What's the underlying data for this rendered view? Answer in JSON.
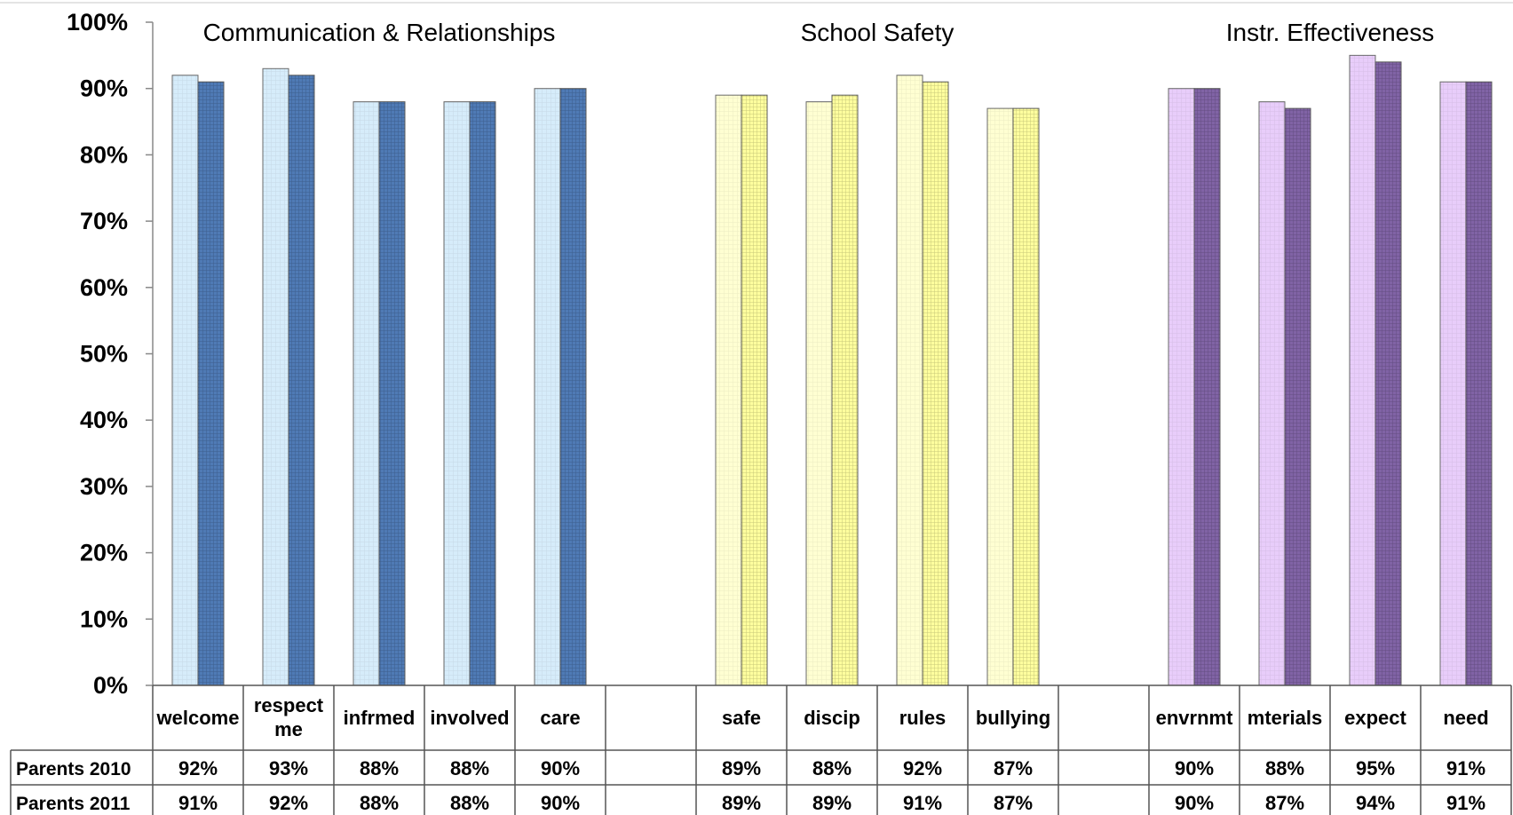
{
  "chart_data": {
    "type": "bar",
    "ylim": [
      0,
      100
    ],
    "yticks": [
      "0%",
      "10%",
      "20%",
      "30%",
      "40%",
      "50%",
      "60%",
      "70%",
      "80%",
      "90%",
      "100%"
    ],
    "groups": [
      {
        "title": "Communication & Relationships",
        "categories": [
          "welcome",
          "respect me",
          "infrmed",
          "involved",
          "care"
        ],
        "colors": {
          "s2010": "#d6ecfa",
          "s2011": "#4f7ab5"
        }
      },
      {
        "title": "School Safety",
        "categories": [
          "safe",
          "discip",
          "rules",
          "bullying"
        ],
        "colors": {
          "s2010": "#ffffd2",
          "s2011": "#ffff9e"
        }
      },
      {
        "title": "Instr. Effectiveness",
        "categories": [
          "envrnmt",
          "mterials",
          "expect",
          "need"
        ],
        "colors": {
          "s2010": "#e8cdfa",
          "s2011": "#8063a5"
        }
      }
    ],
    "slots": [
      "welcome",
      "respect me",
      "infrmed",
      "involved",
      "care",
      "",
      "safe",
      "discip",
      "rules",
      "bullying",
      "",
      "envrnmt",
      "mterials",
      "expect",
      "need"
    ],
    "series": [
      {
        "name": "Parents 2010",
        "values": [
          92,
          93,
          88,
          88,
          90,
          null,
          89,
          88,
          92,
          87,
          null,
          90,
          88,
          95,
          91
        ],
        "labels": [
          "92%",
          "93%",
          "88%",
          "88%",
          "90%",
          "",
          "89%",
          "88%",
          "92%",
          "87%",
          "",
          "90%",
          "88%",
          "95%",
          "91%"
        ]
      },
      {
        "name": "Parents 2011",
        "values": [
          91,
          92,
          88,
          88,
          90,
          null,
          89,
          89,
          91,
          87,
          null,
          90,
          87,
          94,
          91
        ],
        "labels": [
          "91%",
          "92%",
          "88%",
          "88%",
          "90%",
          "",
          "89%",
          "89%",
          "91%",
          "87%",
          "",
          "90%",
          "87%",
          "94%",
          "91%"
        ]
      }
    ],
    "grid": false,
    "legend": "data-table"
  }
}
